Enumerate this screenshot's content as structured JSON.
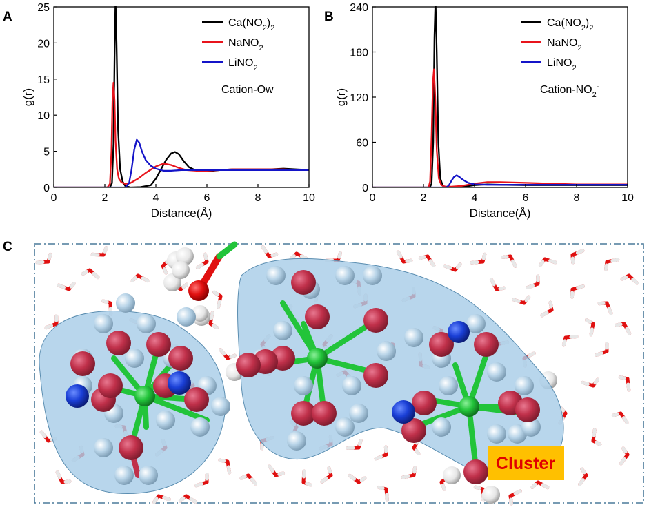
{
  "panels": {
    "a_label": "A",
    "b_label": "B",
    "c_label": "C"
  },
  "chart_data": [
    {
      "id": "A",
      "type": "line",
      "title": "",
      "xlabel": "Distance(Å)",
      "ylabel": "g(r)",
      "xlim": [
        0,
        10
      ],
      "ylim": [
        0,
        25
      ],
      "xticks": [
        0,
        2,
        4,
        6,
        8,
        10
      ],
      "yticks": [
        0,
        5,
        10,
        15,
        20,
        25
      ],
      "annotation": "Cation-Ow",
      "legend_position": "top-right",
      "series": [
        {
          "name": "Ca(NO2)2",
          "label_main": "Ca(NO",
          "label_sub": "2",
          "label_tail": ")",
          "label_sub2": "2",
          "color": "#000000",
          "x": [
            0,
            2.1,
            2.2,
            2.28,
            2.34,
            2.38,
            2.42,
            2.46,
            2.52,
            2.6,
            2.7,
            2.8,
            3.0,
            3.4,
            3.8,
            4.0,
            4.2,
            4.4,
            4.6,
            4.75,
            4.9,
            5.1,
            5.3,
            5.6,
            6.0,
            6.5,
            7.0,
            7.5,
            8.0,
            8.5,
            9.0,
            9.5,
            10
          ],
          "y": [
            0,
            0,
            0,
            0.6,
            6,
            18,
            26,
            20,
            8,
            2.5,
            0.8,
            0.2,
            0,
            0.05,
            0.3,
            1.2,
            2.5,
            3.8,
            4.7,
            4.9,
            4.6,
            3.6,
            2.8,
            2.3,
            2.2,
            2.4,
            2.5,
            2.5,
            2.5,
            2.5,
            2.6,
            2.5,
            2.4
          ]
        },
        {
          "name": "NaNO2",
          "label_main": "NaNO",
          "label_sub": "2",
          "label_tail": "",
          "label_sub2": "",
          "color": "#e8141c",
          "x": [
            0,
            2.1,
            2.2,
            2.26,
            2.3,
            2.34,
            2.38,
            2.42,
            2.48,
            2.55,
            2.65,
            2.8,
            3.0,
            3.3,
            3.6,
            4.0,
            4.3,
            4.6,
            4.9,
            5.2,
            5.6,
            6.0,
            6.5,
            7.0,
            7.5,
            8.0,
            8.5,
            9.0,
            9.5,
            10
          ],
          "y": [
            0,
            0,
            0.5,
            5,
            12,
            14.5,
            12,
            6.5,
            2.5,
            1.2,
            0.7,
            0.5,
            0.6,
            1.2,
            2.0,
            2.9,
            3.3,
            3.1,
            2.7,
            2.4,
            2.3,
            2.3,
            2.4,
            2.5,
            2.5,
            2.5,
            2.5,
            2.5,
            2.4,
            2.4
          ]
        },
        {
          "name": "LiNO2",
          "label_main": "LiNO",
          "label_sub": "2",
          "label_tail": "",
          "label_sub2": "",
          "color": "#1414c8",
          "x": [
            0,
            2.8,
            2.95,
            3.05,
            3.15,
            3.25,
            3.35,
            3.45,
            3.6,
            3.8,
            4.0,
            4.3,
            4.6,
            5.0,
            5.5,
            6.0,
            7.0,
            8.0,
            9.0,
            10
          ],
          "y": [
            0,
            0,
            0.6,
            2.5,
            5.2,
            6.6,
            6.2,
            5.0,
            3.8,
            3.0,
            2.6,
            2.3,
            2.3,
            2.4,
            2.4,
            2.4,
            2.4,
            2.4,
            2.4,
            2.4
          ]
        }
      ]
    },
    {
      "id": "B",
      "type": "line",
      "title": "",
      "xlabel": "Distance(Å)",
      "ylabel": "g(r)",
      "xlim": [
        0,
        10
      ],
      "ylim": [
        0,
        240
      ],
      "xticks": [
        0,
        2,
        4,
        6,
        8,
        10
      ],
      "yticks": [
        0,
        60,
        120,
        180,
        240
      ],
      "annotation": "Cation-NO",
      "annotation_sub": "2",
      "annotation_sup": "-",
      "legend_position": "top-right",
      "series": [
        {
          "name": "Ca(NO2)2",
          "label_main": "Ca(NO",
          "label_sub": "2",
          "label_tail": ")",
          "label_sub2": "2",
          "color": "#000000",
          "x": [
            0,
            2.25,
            2.32,
            2.38,
            2.43,
            2.47,
            2.52,
            2.58,
            2.66,
            2.76,
            2.9,
            3.2,
            3.6,
            4.0,
            4.5,
            5.0,
            6.0,
            7.0,
            8.0,
            9.0,
            10
          ],
          "y": [
            0,
            0,
            5,
            60,
            200,
            250,
            180,
            60,
            12,
            2,
            0.5,
            0.2,
            1,
            3,
            4,
            3.5,
            3,
            3,
            3,
            3,
            3
          ]
        },
        {
          "name": "NaNO2",
          "label_main": "NaNO",
          "label_sub": "2",
          "label_tail": "",
          "label_sub2": "",
          "color": "#e8141c",
          "x": [
            0,
            2.2,
            2.26,
            2.32,
            2.37,
            2.41,
            2.46,
            2.52,
            2.6,
            2.7,
            2.85,
            3.1,
            3.5,
            4.0,
            4.5,
            5.0,
            5.5,
            6.0,
            7.0,
            8.0,
            9.0,
            10
          ],
          "y": [
            0,
            0,
            8,
            70,
            140,
            157,
            120,
            50,
            12,
            3,
            1,
            1,
            2,
            5,
            7,
            7,
            6.5,
            6,
            5,
            4,
            4,
            4
          ]
        },
        {
          "name": "LiNO2",
          "label_main": "LiNO",
          "label_sub": "2",
          "label_tail": "",
          "label_sub2": "",
          "color": "#1414c8",
          "x": [
            0,
            2.9,
            3.0,
            3.1,
            3.2,
            3.3,
            3.4,
            3.55,
            3.75,
            4.0,
            4.5,
            5.0,
            6.0,
            7.0,
            8.0,
            9.0,
            10
          ],
          "y": [
            0,
            0,
            3,
            9,
            14,
            16,
            14,
            10,
            6,
            4,
            3.5,
            3.5,
            3.5,
            3.5,
            3.5,
            3.5,
            3.5
          ]
        }
      ]
    }
  ],
  "illustration": {
    "cluster_label": "Cluster",
    "colors": {
      "oxygen": "#c0304a",
      "oxygen_bright": "#e8141c",
      "hydrogen": "#b8d4e8",
      "hydrogen_white": "#f2f2f2",
      "nitrogen": "#1a3fd6",
      "cation": "#22c43a",
      "cluster_fill": "#a8cde8",
      "label_bg": "#ffc000",
      "label_text": "#e00000",
      "frame": "#4a7a9a"
    }
  }
}
